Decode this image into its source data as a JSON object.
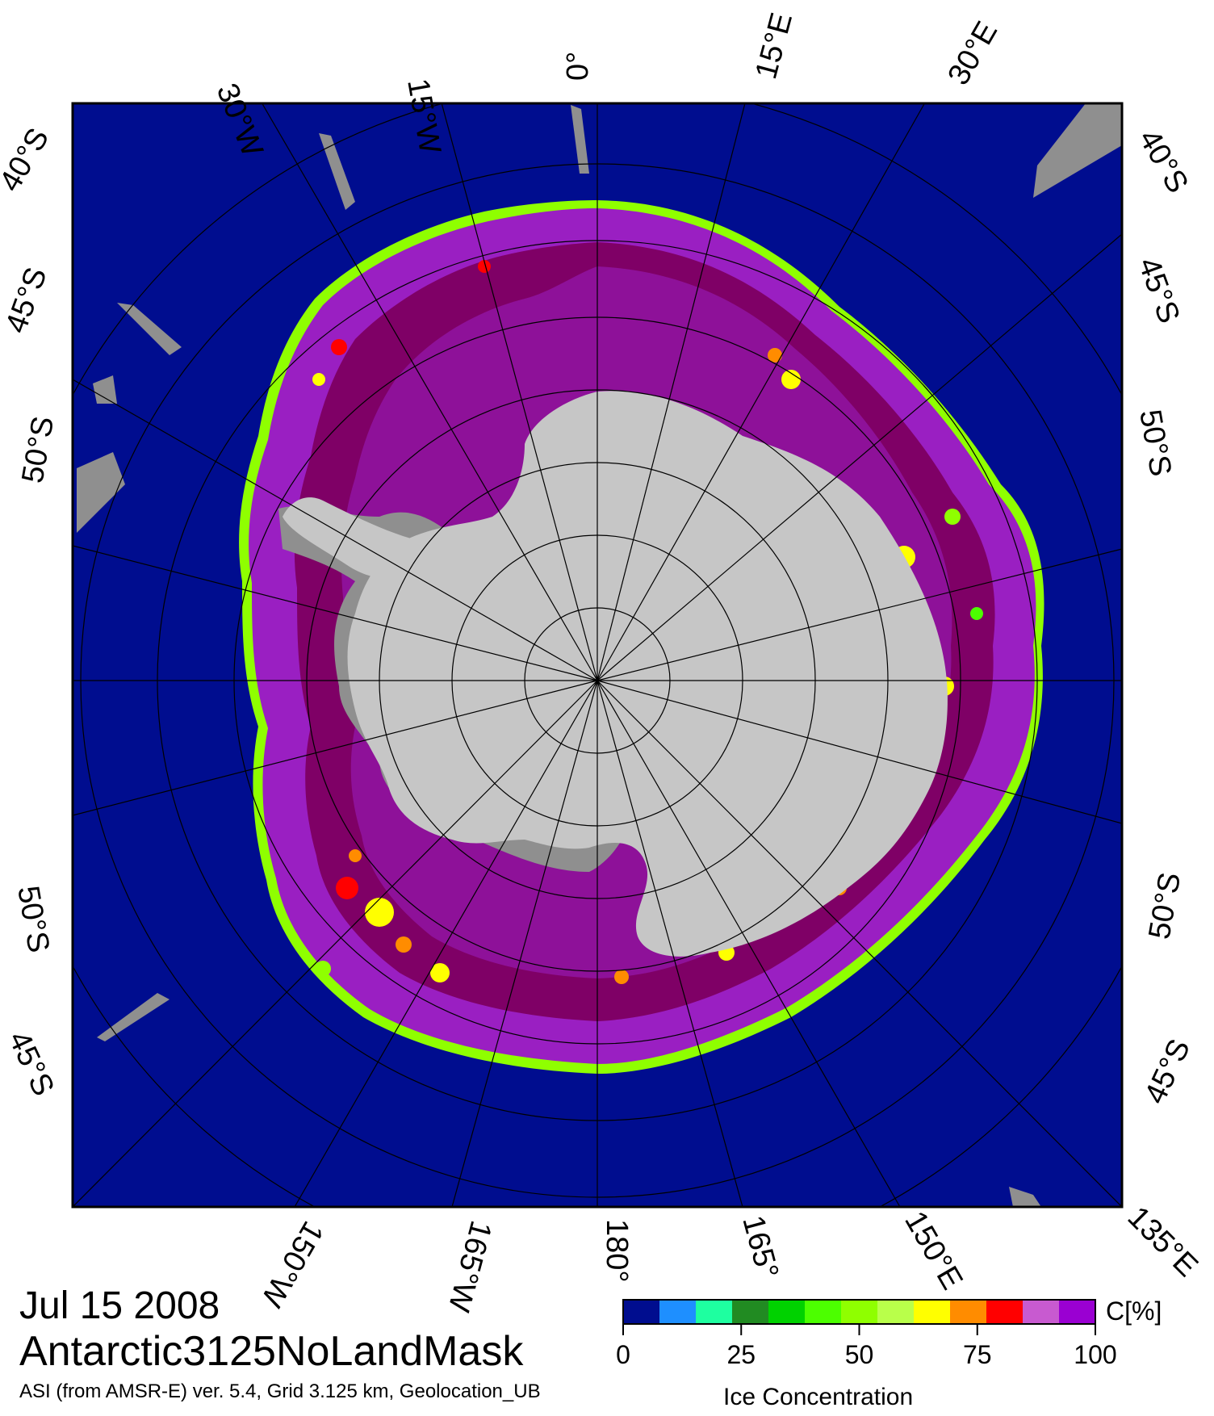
{
  "map": {
    "title_date": "Jul 15 2008",
    "product": "Antarctic3125NoLandMask",
    "source": "ASI (from AMSR-E) ver. 5.4,  Grid 3.125 km, Geolocation_UB",
    "longitude_labels": [
      "30°W",
      "15°W",
      "0°",
      "15°E",
      "30°E",
      "135°E",
      "150°E",
      "165°",
      "180°",
      "165°W",
      "150°W"
    ],
    "latitude_labels_left": [
      "40°S",
      "45°S",
      "50°S",
      "50°S",
      "45°S"
    ],
    "latitude_labels_right": [
      "40°S",
      "45°S",
      "50°S",
      "50°S",
      "45°S"
    ],
    "colors": {
      "ocean": "#000d8f",
      "ice_high": "#7f0066",
      "ice_mid": "#9a1fc2",
      "land": "#c6c6c6",
      "shelf": "#8f8f8f",
      "frame": "#000000"
    }
  },
  "colorbar": {
    "title": "Ice Concentration",
    "unit": "C[%]",
    "ticks": [
      "0",
      "25",
      "50",
      "75",
      "100"
    ],
    "colors": [
      "#000d8f",
      "#1e8fff",
      "#1effa0",
      "#218b22",
      "#00d200",
      "#4cff00",
      "#8fff00",
      "#b9ff4a",
      "#ffff00",
      "#ff8c00",
      "#ff0000",
      "#c85ad0",
      "#9a00d2"
    ]
  }
}
